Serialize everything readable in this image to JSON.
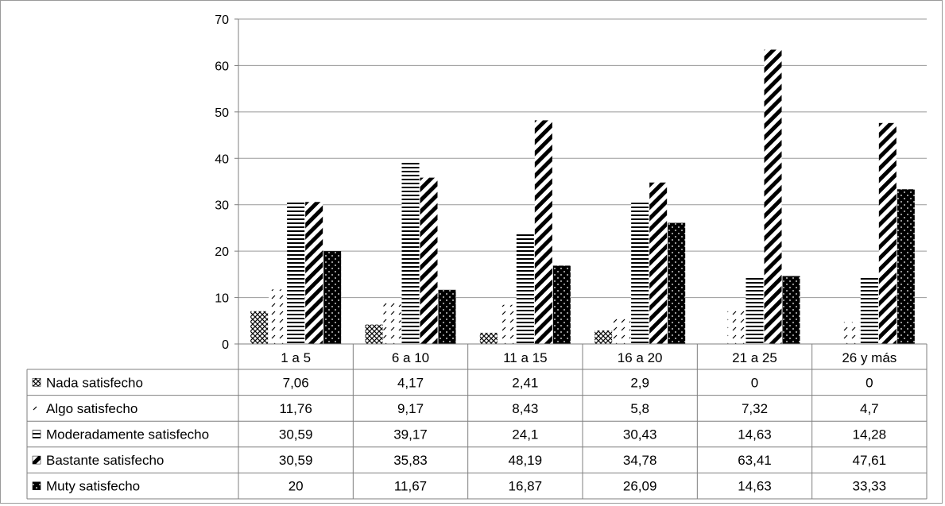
{
  "chart_data": {
    "type": "bar",
    "title": "",
    "xlabel": "",
    "ylabel": "",
    "ylim": [
      0,
      70
    ],
    "yticks": [
      0,
      10,
      20,
      30,
      40,
      50,
      60,
      70
    ],
    "grid": true,
    "legend": "data-table-below",
    "categories": [
      "1 a 5",
      "6 a 10",
      "11 a 15",
      "16 a 20",
      "21 a 25",
      "26 y más"
    ],
    "series": [
      {
        "name": "Nada satisfecho",
        "pattern": "crosshatch",
        "values": [
          7.06,
          4.17,
          2.41,
          2.9,
          0,
          0
        ],
        "labels": [
          "7,06",
          "4,17",
          "2,41",
          "2,9",
          "0",
          "0"
        ]
      },
      {
        "name": "Algo satisfecho",
        "pattern": "light-diagonal",
        "values": [
          11.76,
          9.17,
          8.43,
          5.8,
          7.32,
          4.7
        ],
        "labels": [
          "11,76",
          "9,17",
          "8,43",
          "5,8",
          "7,32",
          "4,7"
        ]
      },
      {
        "name": "Moderadamente satisfecho",
        "pattern": "horizontal-lines",
        "values": [
          30.59,
          39.17,
          24.1,
          30.43,
          14.63,
          14.28
        ],
        "labels": [
          "30,59",
          "39,17",
          "24,1",
          "30,43",
          "14,63",
          "14,28"
        ]
      },
      {
        "name": "Bastante satisfecho",
        "pattern": "bold-diagonal",
        "values": [
          30.59,
          35.83,
          48.19,
          34.78,
          63.41,
          47.61
        ],
        "labels": [
          "30,59",
          "35,83",
          "48,19",
          "34,78",
          "63,41",
          "47,61"
        ]
      },
      {
        "name": "Muty satisfecho",
        "pattern": "black-dotted",
        "values": [
          20,
          11.67,
          16.87,
          26.09,
          14.63,
          33.33
        ],
        "labels": [
          "20",
          "11,67",
          "16,87",
          "26,09",
          "14,63",
          "33,33"
        ]
      }
    ]
  }
}
